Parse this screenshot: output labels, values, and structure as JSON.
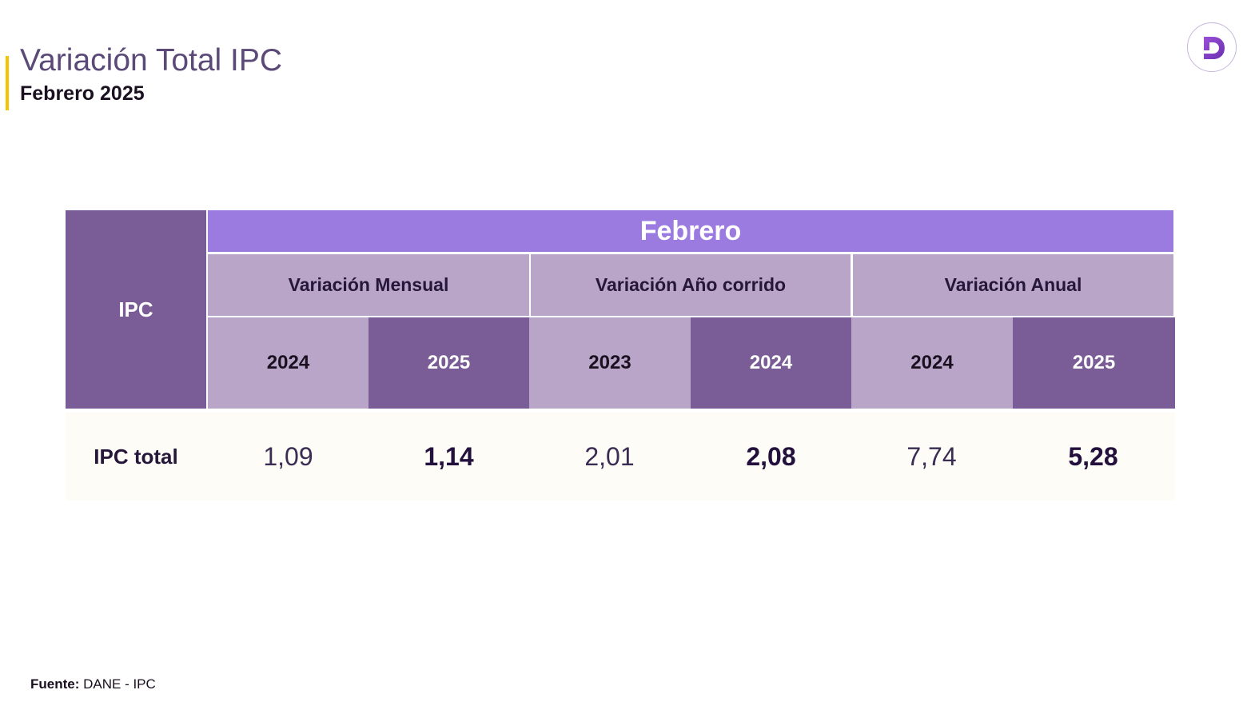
{
  "header": {
    "title": "Variación Total IPC",
    "subtitle": "Febrero 2025"
  },
  "colors": {
    "accent": "#f2c500",
    "header_purple": "#9b7be0",
    "dark_purple": "#7a5d96",
    "light_purple": "#b9a5c8"
  },
  "logo": {
    "icon": "d-logo-icon"
  },
  "chart_data": {
    "type": "table",
    "row_header": "IPC",
    "month_header": "Febrero",
    "groups": [
      {
        "label": "Variación Mensual",
        "years": [
          "2024",
          "2025"
        ]
      },
      {
        "label": "Variación Año corrido",
        "years": [
          "2023",
          "2024"
        ]
      },
      {
        "label": "Variación Anual",
        "years": [
          "2024",
          "2025"
        ]
      }
    ],
    "rows": [
      {
        "label": "IPC total",
        "values": [
          "1,09",
          "1,14",
          "2,01",
          "2,08",
          "7,74",
          "5,28"
        ]
      }
    ]
  },
  "footer": {
    "source_label": "Fuente:",
    "source_text": "DANE - IPC"
  }
}
